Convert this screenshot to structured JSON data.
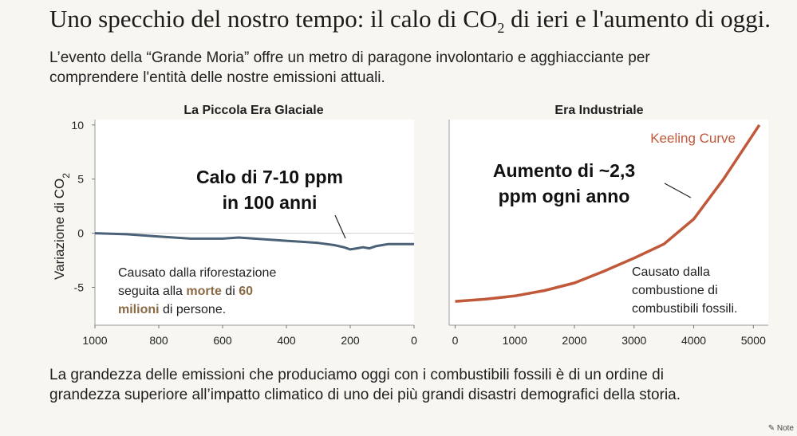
{
  "header": {
    "title_main": "Uno specchio del nostro tempo: il calo di CO",
    "title_sub": "2",
    "title_rest": " di ieri e l'aumento di oggi.",
    "intro_line1": "L’evento della “Grande Moria” offre un metro di paragone involontario e agghiacciante per",
    "intro_line2": "comprendere l'entità delle nostre emissioni attuali."
  },
  "chart_data": [
    {
      "type": "line",
      "title": "La Piccola Era Glaciale",
      "ylabel": "Variazione di CO",
      "ylabel_sub": "2",
      "xlim": [
        1000,
        0
      ],
      "ylim": [
        -8.5,
        10.5
      ],
      "x_ticks": [
        1000,
        800,
        600,
        400,
        200,
        0
      ],
      "y_ticks": [
        10,
        5,
        0,
        -5
      ],
      "y_tick_labels": [
        "10",
        "5",
        "0",
        "-5"
      ],
      "zero_line": true,
      "line_color": "#4a6177",
      "series": [
        {
          "x": [
            1000,
            900,
            800,
            700,
            600,
            550,
            500,
            450,
            400,
            350,
            300,
            250,
            220,
            200,
            180,
            160,
            140,
            120,
            100,
            80,
            60,
            40,
            20,
            0
          ],
          "values": [
            0.0,
            -0.1,
            -0.3,
            -0.5,
            -0.5,
            -0.4,
            -0.5,
            -0.6,
            -0.7,
            -0.8,
            -0.9,
            -1.1,
            -1.3,
            -1.5,
            -1.4,
            -1.3,
            -1.4,
            -1.2,
            -1.1,
            -1.0,
            -1.0,
            -1.0,
            -1.0,
            -1.0
          ]
        }
      ],
      "callout_line1": "Calo di 7-10 ppm",
      "callout_line2": "in 100 anni",
      "note_line1": "Causato dalla riforestazione",
      "note_line2_part1": "seguita alla ",
      "note_line2_highlight1": "morte",
      "note_line2_part2": " di ",
      "note_line2_highlight2": "60",
      "note_line3_highlight": "milioni",
      "note_line3_rest": " di persone.",
      "highlight_color": "#8a6a45"
    },
    {
      "type": "line",
      "title": "Era Industriale",
      "xlim": [
        -100,
        5250
      ],
      "ylim": [
        -8.5,
        10.5
      ],
      "x_ticks": [
        0,
        1000,
        2000,
        3000,
        4000,
        5000
      ],
      "x_tick_labels": [
        "0",
        "1000",
        "2000",
        "3000",
        "4000",
        "5000"
      ],
      "line_color": "#c0583a",
      "series": [
        {
          "name": "Keeling Curve",
          "x": [
            0,
            500,
            1000,
            1500,
            2000,
            2500,
            3000,
            3500,
            4000,
            4500,
            4800,
            5100
          ],
          "values": [
            -6.3,
            -6.1,
            -5.8,
            -5.3,
            -4.6,
            -3.5,
            -2.3,
            -1.0,
            1.3,
            5.0,
            7.5,
            10.0
          ]
        }
      ],
      "callout_line1": "Aumento di ~2,3",
      "callout_line2": "ppm ogni anno",
      "note_line1": "Causato dalla",
      "note_line2": "combustione di",
      "note_line3": "combustibili fossili."
    }
  ],
  "footer": {
    "conclusion_line1": "La grandezza delle emissioni che produciamo oggi con i combustibili fossili è di un ordine di",
    "conclusion_line2": "grandezza superiore all’impatto climatico di uno dei più grandi disastri demografici della storia.",
    "brand_label": "Note"
  }
}
